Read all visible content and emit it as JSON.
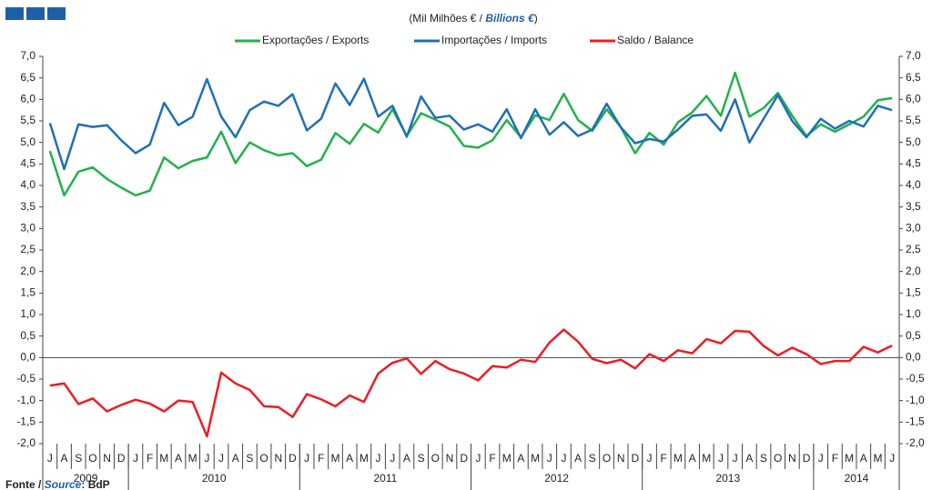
{
  "chart_data": {
    "type": "line",
    "subtitle": [
      "(Mil Milhões € / ",
      "Billions €",
      ")"
    ],
    "source": [
      "Fonte / ",
      "Source",
      ": BdP"
    ],
    "categories": [
      "J",
      "A",
      "S",
      "O",
      "N",
      "D",
      "J",
      "F",
      "M",
      "A",
      "M",
      "J",
      "J",
      "A",
      "S",
      "O",
      "N",
      "D",
      "J",
      "F",
      "M",
      "A",
      "M",
      "J",
      "J",
      "A",
      "S",
      "O",
      "N",
      "D",
      "J",
      "F",
      "M",
      "A",
      "M",
      "J",
      "J",
      "A",
      "S",
      "O",
      "N",
      "D",
      "J",
      "F",
      "M",
      "A",
      "M",
      "J",
      "J",
      "A",
      "S",
      "O",
      "N",
      "D",
      "J",
      "F",
      "M",
      "A",
      "M",
      "J"
    ],
    "category_groups": [
      "2009",
      "2010",
      "2011",
      "2012",
      "2013",
      "2014"
    ],
    "series": [
      {
        "name": "Exportações / Exports",
        "color": "#22b14c",
        "values": [
          4.8,
          3.77,
          4.32,
          4.42,
          4.15,
          3.95,
          3.77,
          3.88,
          4.65,
          4.4,
          4.57,
          4.65,
          5.25,
          4.52,
          5.0,
          4.82,
          4.7,
          4.75,
          4.45,
          4.6,
          5.22,
          4.97,
          5.43,
          5.23,
          5.77,
          5.15,
          5.68,
          5.53,
          5.37,
          4.92,
          4.88,
          5.05,
          5.52,
          5.12,
          5.63,
          5.52,
          6.13,
          5.52,
          5.27,
          5.77,
          5.35,
          4.75,
          5.22,
          4.95,
          5.47,
          5.7,
          6.08,
          5.62,
          6.62,
          5.6,
          5.8,
          6.15,
          5.62,
          5.15,
          5.42,
          5.25,
          5.42,
          5.6,
          5.98,
          6.03
        ]
      },
      {
        "name": "Importações / Imports",
        "color": "#1f6fb8",
        "values": [
          5.45,
          4.38,
          5.42,
          5.36,
          5.4,
          5.05,
          4.75,
          4.95,
          5.92,
          5.4,
          5.6,
          6.47,
          5.6,
          5.12,
          5.75,
          5.95,
          5.85,
          6.12,
          5.28,
          5.55,
          6.37,
          5.87,
          6.48,
          5.6,
          5.85,
          5.13,
          6.07,
          5.57,
          5.62,
          5.3,
          5.42,
          5.25,
          5.77,
          5.1,
          5.77,
          5.18,
          5.47,
          5.15,
          5.3,
          5.9,
          5.35,
          4.98,
          5.08,
          5.02,
          5.3,
          5.62,
          5.65,
          5.27,
          6.0,
          5.0,
          5.55,
          6.1,
          5.5,
          5.12,
          5.55,
          5.32,
          5.5,
          5.37,
          5.85,
          5.75
        ]
      },
      {
        "name": "Saldo / Balance",
        "color": "#ee1c25",
        "values": [
          -0.65,
          -0.6,
          -1.08,
          -0.95,
          -1.25,
          -1.1,
          -0.98,
          -1.07,
          -1.25,
          -1.0,
          -1.03,
          -1.83,
          -0.35,
          -0.6,
          -0.75,
          -1.13,
          -1.15,
          -1.38,
          -0.85,
          -0.97,
          -1.13,
          -0.88,
          -1.03,
          -0.37,
          -0.12,
          -0.02,
          -0.38,
          -0.08,
          -0.27,
          -0.37,
          -0.53,
          -0.2,
          -0.23,
          -0.05,
          -0.1,
          0.35,
          0.65,
          0.37,
          -0.03,
          -0.13,
          -0.05,
          -0.25,
          0.08,
          -0.08,
          0.17,
          0.1,
          0.43,
          0.33,
          0.62,
          0.6,
          0.27,
          0.05,
          0.23,
          0.08,
          -0.15,
          -0.08,
          -0.08,
          0.25,
          0.12,
          0.28
        ]
      }
    ],
    "ylim": [
      -2.0,
      7.0
    ],
    "yticks": [
      {
        "value": 7.0,
        "label": "7,0"
      },
      {
        "value": 6.5,
        "label": "6,5"
      },
      {
        "value": 6.0,
        "label": "6,0"
      },
      {
        "value": 5.5,
        "label": "5,5"
      },
      {
        "value": 5.0,
        "label": "5,0"
      },
      {
        "value": 4.5,
        "label": "4,5"
      },
      {
        "value": 4.0,
        "label": "4,0"
      },
      {
        "value": 3.5,
        "label": "3,5"
      },
      {
        "value": 3.0,
        "label": "3,0"
      },
      {
        "value": 2.5,
        "label": "2,5"
      },
      {
        "value": 2.0,
        "label": "2,0"
      },
      {
        "value": 1.5,
        "label": "1,5"
      },
      {
        "value": 1.0,
        "label": "1,0"
      },
      {
        "value": 0.5,
        "label": "0,5"
      },
      {
        "value": 0.0,
        "label": "0,0"
      },
      {
        "value": -0.5,
        "label": "-0,5"
      },
      {
        "value": -1.0,
        "label": "-1,0"
      },
      {
        "value": -1.5,
        "label": "-1,5"
      },
      {
        "value": -2.0,
        "label": "-2,0"
      }
    ],
    "grid": false
  }
}
